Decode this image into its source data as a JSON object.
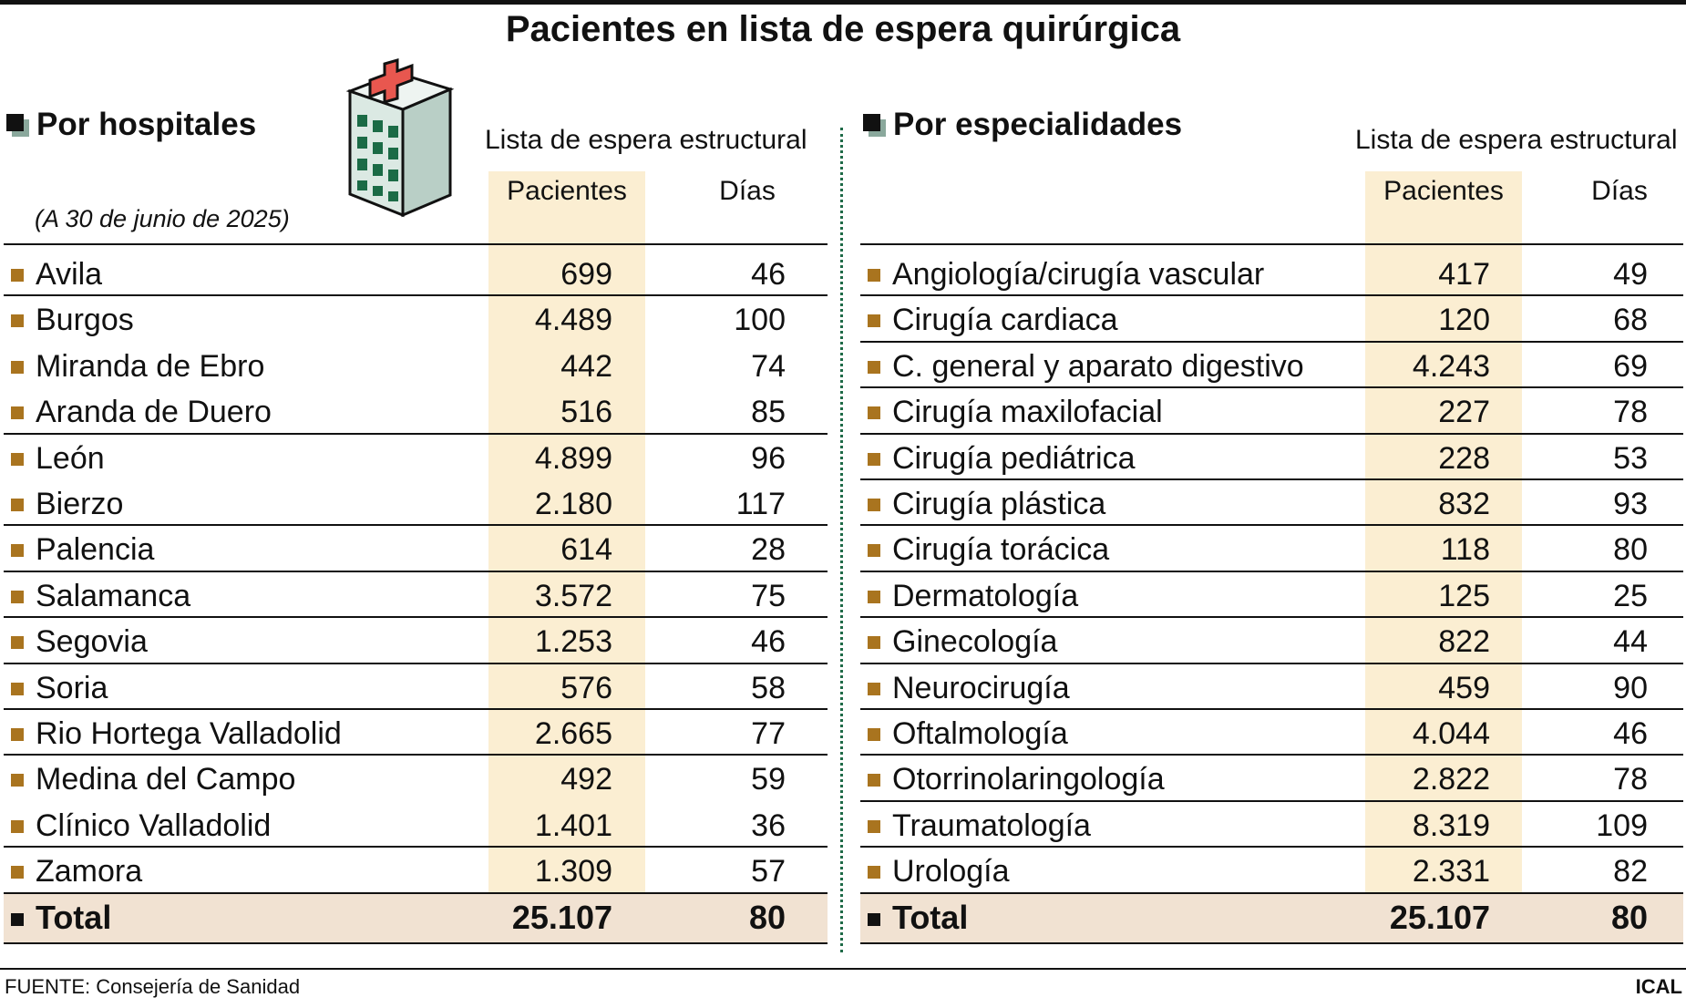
{
  "title": "Pacientes en lista de espera quirúrgica",
  "left": {
    "header": "Por hospitales",
    "subtitle": "(A 30 de junio de 2025)",
    "group_label": "Lista de espera estructural",
    "col_patients": "Pacientes",
    "col_days": "Días"
  },
  "right": {
    "header": "Por especialidades",
    "group_label": "Lista de espera estructural",
    "col_patients": "Pacientes",
    "col_days": "Días"
  },
  "source": "FUENTE: Consejería de Sanidad",
  "agency": "ICAL",
  "colors": {
    "highlight": "#fbeed2",
    "total_band": "#f1e2d2",
    "bullet": "#a9741f",
    "divider": "#1e6a47"
  },
  "chart_data": [
    {
      "type": "table",
      "title": "Por hospitales",
      "columns": [
        "Pacientes",
        "Días"
      ],
      "rows": [
        {
          "label": "Avila",
          "pacientes": "699",
          "dias": "46"
        },
        {
          "label": "Burgos",
          "pacientes": "4.489",
          "dias": "100"
        },
        {
          "label": "Miranda de Ebro",
          "pacientes": "442",
          "dias": "74"
        },
        {
          "label": "Aranda de Duero",
          "pacientes": "516",
          "dias": "85"
        },
        {
          "label": "León",
          "pacientes": "4.899",
          "dias": "96"
        },
        {
          "label": "Bierzo",
          "pacientes": "2.180",
          "dias": "117"
        },
        {
          "label": "Palencia",
          "pacientes": "614",
          "dias": "28"
        },
        {
          "label": "Salamanca",
          "pacientes": "3.572",
          "dias": "75"
        },
        {
          "label": "Segovia",
          "pacientes": "1.253",
          "dias": "46"
        },
        {
          "label": "Soria",
          "pacientes": "576",
          "dias": "58"
        },
        {
          "label": "Rio Hortega Valladolid",
          "pacientes": "2.665",
          "dias": "77"
        },
        {
          "label": "Medina del Campo",
          "pacientes": "492",
          "dias": "59"
        },
        {
          "label": "Clínico Valladolid",
          "pacientes": "1.401",
          "dias": "36"
        },
        {
          "label": "Zamora",
          "pacientes": "1.309",
          "dias": "57"
        }
      ],
      "total": {
        "label": "Total",
        "pacientes": "25.107",
        "dias": "80"
      }
    },
    {
      "type": "table",
      "title": "Por especialidades",
      "columns": [
        "Pacientes",
        "Días"
      ],
      "rows": [
        {
          "label": "Angiología/cirugía vascular",
          "pacientes": "417",
          "dias": "49"
        },
        {
          "label": "Cirugía cardiaca",
          "pacientes": "120",
          "dias": "68"
        },
        {
          "label": "C. general y aparato digestivo",
          "pacientes": "4.243",
          "dias": "69"
        },
        {
          "label": "Cirugía maxilofacial",
          "pacientes": "227",
          "dias": "78"
        },
        {
          "label": "Cirugía pediátrica",
          "pacientes": "228",
          "dias": "53"
        },
        {
          "label": "Cirugía plástica",
          "pacientes": "832",
          "dias": "93"
        },
        {
          "label": "Cirugía torácica",
          "pacientes": "118",
          "dias": "80"
        },
        {
          "label": "Dermatología",
          "pacientes": "125",
          "dias": "25"
        },
        {
          "label": "Ginecología",
          "pacientes": "822",
          "dias": "44"
        },
        {
          "label": "Neurocirugía",
          "pacientes": "459",
          "dias": "90"
        },
        {
          "label": "Oftalmología",
          "pacientes": "4.044",
          "dias": "46"
        },
        {
          "label": "Otorrinolaringología",
          "pacientes": "2.822",
          "dias": "78"
        },
        {
          "label": "Traumatología",
          "pacientes": "8.319",
          "dias": "109"
        },
        {
          "label": "Urología",
          "pacientes": "2.331",
          "dias": "82"
        }
      ],
      "total": {
        "label": "Total",
        "pacientes": "25.107",
        "dias": "80"
      }
    }
  ]
}
